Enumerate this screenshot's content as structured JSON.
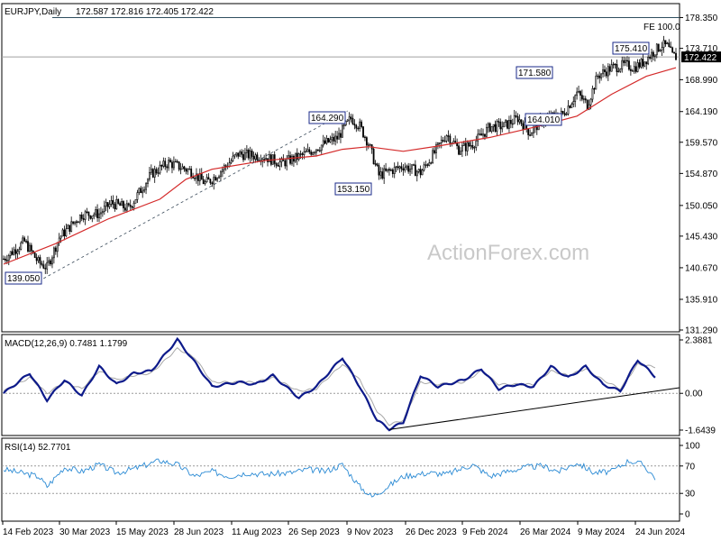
{
  "chart_data": [
    {
      "type": "candlestick",
      "title": "EURJPY,Daily",
      "ohlc": "172.587 172.816 172.405 172.422",
      "current_price": "172.422",
      "fe_label": "FE 100.0",
      "fe_value": 178.35,
      "watermark": "ActionForex.com",
      "ylim": [
        131.29,
        180.45
      ],
      "y_ticks": [
        "178.350",
        "173.710",
        "168.990",
        "164.190",
        "159.570",
        "154.870",
        "150.050",
        "145.430",
        "140.670",
        "135.910",
        "131.290"
      ],
      "x_ticks": [
        "14 Feb 2023",
        "30 Mar 2023",
        "15 May 2023",
        "28 Jun 2023",
        "11 Aug 2023",
        "26 Sep 2023",
        "9 Nov 2023",
        "26 Dec 2023",
        "9 Feb 2024",
        "26 Mar 2024",
        "9 May 2024",
        "24 Jun 2024"
      ],
      "annotations": [
        {
          "label": "139.050",
          "value": 139.05
        },
        {
          "label": "164.290",
          "value": 164.29
        },
        {
          "label": "153.150",
          "value": 153.15
        },
        {
          "label": "171.580",
          "value": 171.58
        },
        {
          "label": "164.010",
          "value": 164.01
        },
        {
          "label": "175.410",
          "value": 175.41
        }
      ],
      "close_path": [
        [
          0,
          142.0
        ],
        [
          12,
          144.6
        ],
        [
          20,
          141.5
        ],
        [
          25,
          140.7
        ],
        [
          32,
          145.2
        ],
        [
          45,
          148.7
        ],
        [
          55,
          148.8
        ],
        [
          62,
          150.4
        ],
        [
          72,
          149.6
        ],
        [
          85,
          154.8
        ],
        [
          95,
          156.5
        ],
        [
          108,
          155.2
        ],
        [
          116,
          153.4
        ],
        [
          120,
          154.0
        ],
        [
          135,
          157.8
        ],
        [
          150,
          157.4
        ],
        [
          160,
          156.4
        ],
        [
          172,
          157.6
        ],
        [
          185,
          159.4
        ],
        [
          192,
          160.2
        ],
        [
          200,
          163.2
        ],
        [
          205,
          162.0
        ],
        [
          210,
          159.4
        ],
        [
          216,
          154.6
        ],
        [
          222,
          155.2
        ],
        [
          230,
          156.0
        ],
        [
          240,
          155.0
        ],
        [
          247,
          157.6
        ],
        [
          255,
          160.8
        ],
        [
          262,
          158.5
        ],
        [
          270,
          159.3
        ],
        [
          280,
          161.9
        ],
        [
          288,
          162.0
        ],
        [
          296,
          163.2
        ],
        [
          303,
          161.0
        ],
        [
          310,
          162.9
        ],
        [
          322,
          163.8
        ],
        [
          330,
          167.0
        ],
        [
          336,
          165.2
        ],
        [
          342,
          169.6
        ],
        [
          350,
          170.8
        ],
        [
          358,
          171.2
        ],
        [
          363,
          170.8
        ],
        [
          368,
          171.6
        ],
        [
          375,
          173.4
        ],
        [
          379,
          174.2
        ],
        [
          382,
          174.0
        ],
        [
          385,
          172.6
        ],
        [
          387,
          172.422
        ]
      ],
      "ma_path": [
        [
          0,
          141.2
        ],
        [
          30,
          144.3
        ],
        [
          60,
          148.0
        ],
        [
          90,
          151.0
        ],
        [
          105,
          154.0
        ],
        [
          120,
          155.5
        ],
        [
          150,
          156.8
        ],
        [
          180,
          157.5
        ],
        [
          195,
          158.5
        ],
        [
          210,
          158.9
        ],
        [
          230,
          158.2
        ],
        [
          250,
          159.0
        ],
        [
          280,
          160.3
        ],
        [
          310,
          162.1
        ],
        [
          330,
          163.5
        ],
        [
          350,
          166.8
        ],
        [
          370,
          169.5
        ],
        [
          387,
          170.8
        ]
      ],
      "price_trendline": [
        [
          23,
          139.05
        ],
        [
          198,
          164.29
        ]
      ]
    },
    {
      "type": "line",
      "title": "MACD(12,26,9) 0.7481 1.1799",
      "ylim": [
        -1.6439,
        2.3881
      ],
      "y_ticks": [
        "2.3881",
        "0.00",
        "-1.6439"
      ],
      "zero_label": "0.00",
      "macd_path": [
        [
          0,
          0.0
        ],
        [
          15,
          0.9
        ],
        [
          25,
          -0.3
        ],
        [
          35,
          0.6
        ],
        [
          45,
          -0.1
        ],
        [
          55,
          1.2
        ],
        [
          65,
          0.4
        ],
        [
          75,
          0.9
        ],
        [
          85,
          1.0
        ],
        [
          100,
          2.4
        ],
        [
          110,
          1.4
        ],
        [
          120,
          0.3
        ],
        [
          135,
          0.5
        ],
        [
          145,
          0.4
        ],
        [
          155,
          0.8
        ],
        [
          170,
          -0.2
        ],
        [
          180,
          0.3
        ],
        [
          195,
          1.6
        ],
        [
          205,
          0.3
        ],
        [
          215,
          -1.2
        ],
        [
          222,
          -1.6
        ],
        [
          230,
          -1.3
        ],
        [
          240,
          0.8
        ],
        [
          250,
          0.3
        ],
        [
          265,
          0.6
        ],
        [
          275,
          1.1
        ],
        [
          285,
          0.2
        ],
        [
          295,
          0.4
        ],
        [
          305,
          0.3
        ],
        [
          315,
          1.2
        ],
        [
          325,
          0.7
        ],
        [
          335,
          1.2
        ],
        [
          345,
          0.4
        ],
        [
          355,
          0.1
        ],
        [
          365,
          1.5
        ],
        [
          375,
          0.75
        ]
      ],
      "signal_path": [
        [
          0,
          0.1
        ],
        [
          15,
          0.7
        ],
        [
          25,
          0.0
        ],
        [
          35,
          0.5
        ],
        [
          45,
          0.2
        ],
        [
          55,
          1.0
        ],
        [
          65,
          0.6
        ],
        [
          75,
          0.8
        ],
        [
          85,
          0.9
        ],
        [
          100,
          2.0
        ],
        [
          110,
          1.6
        ],
        [
          120,
          0.5
        ],
        [
          135,
          0.5
        ],
        [
          145,
          0.5
        ],
        [
          155,
          0.7
        ],
        [
          170,
          0.1
        ],
        [
          180,
          0.2
        ],
        [
          195,
          1.3
        ],
        [
          205,
          0.6
        ],
        [
          215,
          -0.8
        ],
        [
          222,
          -1.4
        ],
        [
          230,
          -1.2
        ],
        [
          240,
          0.5
        ],
        [
          250,
          0.4
        ],
        [
          265,
          0.5
        ],
        [
          275,
          1.0
        ],
        [
          285,
          0.4
        ],
        [
          295,
          0.4
        ],
        [
          305,
          0.4
        ],
        [
          315,
          1.0
        ],
        [
          325,
          0.8
        ],
        [
          335,
          1.1
        ],
        [
          345,
          0.6
        ],
        [
          355,
          0.2
        ],
        [
          365,
          1.3
        ],
        [
          375,
          1.18
        ]
      ]
    },
    {
      "type": "line",
      "title": "RSI(14) 52.7701",
      "ylim": [
        0,
        100
      ],
      "y_ticks": [
        "100",
        "70",
        "30",
        "0"
      ],
      "levels": [
        70,
        30
      ],
      "rsi_path": [
        [
          0,
          65
        ],
        [
          10,
          60
        ],
        [
          20,
          55
        ],
        [
          25,
          40
        ],
        [
          35,
          68
        ],
        [
          45,
          62
        ],
        [
          55,
          72
        ],
        [
          65,
          60
        ],
        [
          75,
          66
        ],
        [
          90,
          78
        ],
        [
          100,
          72
        ],
        [
          110,
          55
        ],
        [
          120,
          62
        ],
        [
          130,
          55
        ],
        [
          140,
          60
        ],
        [
          150,
          58
        ],
        [
          165,
          60
        ],
        [
          175,
          65
        ],
        [
          185,
          62
        ],
        [
          195,
          72
        ],
        [
          205,
          40
        ],
        [
          212,
          25
        ],
        [
          220,
          38
        ],
        [
          230,
          55
        ],
        [
          245,
          60
        ],
        [
          255,
          58
        ],
        [
          270,
          72
        ],
        [
          280,
          55
        ],
        [
          290,
          62
        ],
        [
          300,
          68
        ],
        [
          310,
          70
        ],
        [
          320,
          62
        ],
        [
          330,
          75
        ],
        [
          340,
          60
        ],
        [
          350,
          62
        ],
        [
          360,
          78
        ],
        [
          368,
          72
        ],
        [
          375,
          53
        ]
      ]
    }
  ]
}
